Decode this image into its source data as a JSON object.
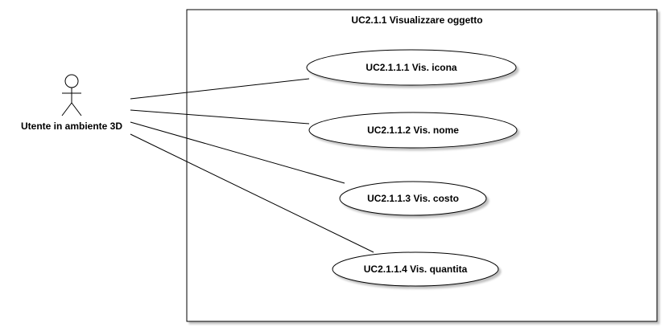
{
  "diagram": {
    "system_title": "UC2.1.1 Visualizzare oggetto",
    "actor": {
      "label": "Utente in ambiente 3D"
    },
    "use_cases": [
      {
        "label": "UC2.1.1.1 Vis. icona"
      },
      {
        "label": "UC2.1.1.2 Vis. nome"
      },
      {
        "label": "UC2.1.1.3 Vis. costo"
      },
      {
        "label": "UC2.1.1.4 Vis. quantita"
      }
    ]
  }
}
